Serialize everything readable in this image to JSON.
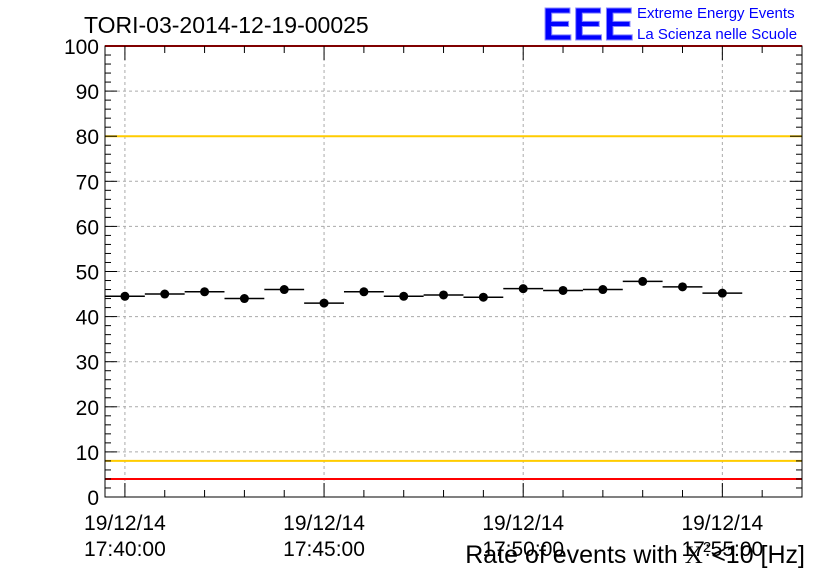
{
  "chart_data": {
    "type": "scatter",
    "title": "TORI-03-2014-12-19-00025",
    "xlabel": "Rate of events with",
    "xlabel_symbol": "X",
    "xlabel_sup": "2",
    "xlabel_tail": "<10 [Hz]",
    "ylim": [
      0,
      100
    ],
    "y_ticks": [
      "0",
      "10",
      "20",
      "30",
      "40",
      "50",
      "60",
      "70",
      "80",
      "90",
      "100"
    ],
    "x_tick_labels": [
      {
        "date": "19/12/14",
        "time": "17:40:00"
      },
      {
        "date": "19/12/14",
        "time": "17:45:00"
      },
      {
        "date": "19/12/14",
        "time": "17:50:00"
      },
      {
        "date": "19/12/14",
        "time": "17:55:00"
      }
    ],
    "x_range_minutes": [
      -0.5,
      17.0
    ],
    "bin_width_minutes": 1,
    "grid": true,
    "points": [
      {
        "x": 0,
        "y": 44.5
      },
      {
        "x": 1,
        "y": 45.0
      },
      {
        "x": 2,
        "y": 45.5
      },
      {
        "x": 3,
        "y": 44.0
      },
      {
        "x": 4,
        "y": 46.0
      },
      {
        "x": 5,
        "y": 43.0
      },
      {
        "x": 6,
        "y": 45.5
      },
      {
        "x": 7,
        "y": 44.5
      },
      {
        "x": 8,
        "y": 44.8
      },
      {
        "x": 9,
        "y": 44.3
      },
      {
        "x": 10,
        "y": 46.2
      },
      {
        "x": 11,
        "y": 45.8
      },
      {
        "x": 12,
        "y": 46.0
      },
      {
        "x": 13,
        "y": 47.8
      },
      {
        "x": 14,
        "y": 46.6
      },
      {
        "x": 15,
        "y": 45.2
      }
    ],
    "reference_lines": [
      {
        "y": 100,
        "color": "#ff0000"
      },
      {
        "y": 80,
        "color": "#ffcc00"
      },
      {
        "y": 8,
        "color": "#ffcc00"
      },
      {
        "y": 4,
        "color": "#ff0000"
      }
    ]
  },
  "logo": {
    "mark": "EEE",
    "line1": "Extreme Energy Events",
    "line2": "La Scienza nelle Scuole",
    "color": "#0000ff"
  }
}
